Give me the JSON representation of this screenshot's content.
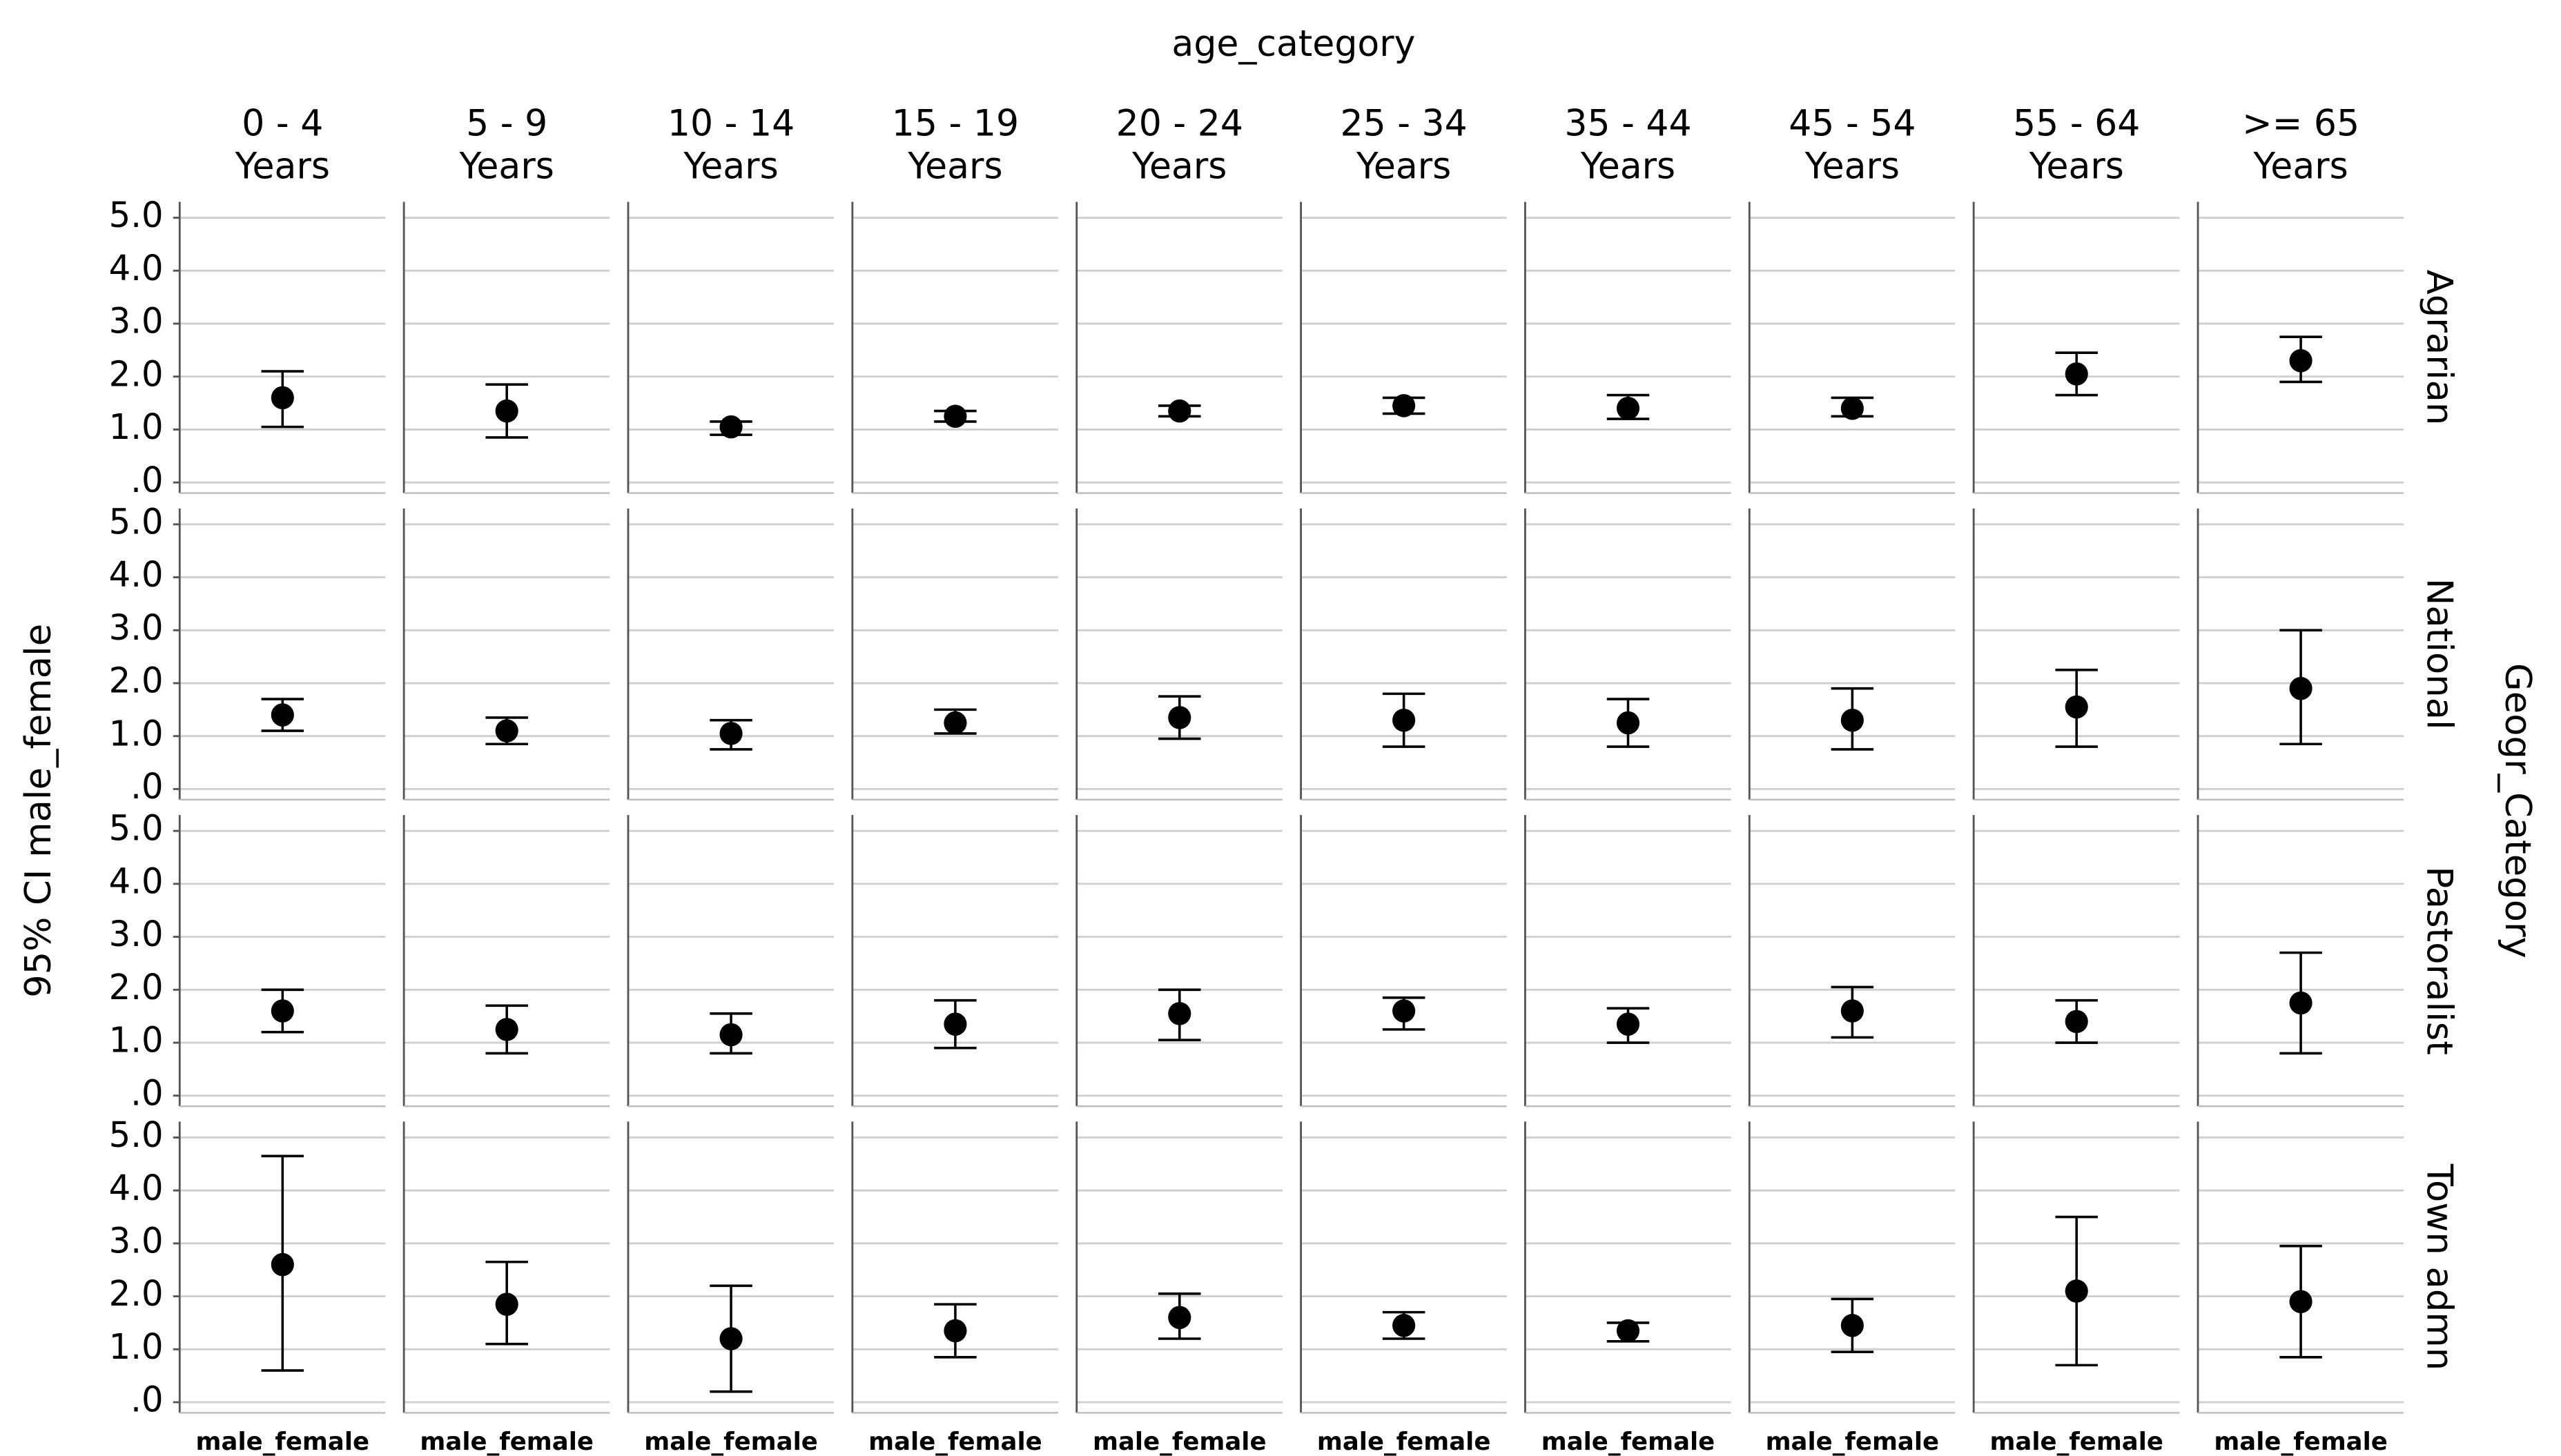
{
  "chart_data": {
    "type": "errorbar",
    "title": "age_category",
    "row_title": "Geogr_Category",
    "y_label": "95% CI male_female",
    "x_label": "male_female",
    "columns": [
      [
        "0 - 4",
        "Years"
      ],
      [
        "5 - 9",
        "Years"
      ],
      [
        "10 - 14",
        "Years"
      ],
      [
        "15 - 19",
        "Years"
      ],
      [
        "20 - 24",
        "Years"
      ],
      [
        "25 - 34",
        "Years"
      ],
      [
        "35 - 44",
        "Years"
      ],
      [
        "45 - 54",
        "Years"
      ],
      [
        "55 - 64",
        "Years"
      ],
      [
        ">= 65",
        "Years"
      ]
    ],
    "ylim": [
      -0.2,
      5.3
    ],
    "yticks": [
      {
        "value": 0,
        "label": ".0"
      },
      {
        "value": 1,
        "label": "1.0"
      },
      {
        "value": 2,
        "label": "2.0"
      },
      {
        "value": 3,
        "label": "3.0"
      },
      {
        "value": 4,
        "label": "4.0"
      },
      {
        "value": 5,
        "label": "5.0"
      }
    ],
    "grid": true,
    "color": "#000000",
    "series": [
      {
        "name": "Agrarian",
        "values": [
          1.6,
          1.35,
          1.05,
          1.25,
          1.35,
          1.45,
          1.4,
          1.4,
          2.05,
          2.3
        ],
        "lower": [
          1.05,
          0.85,
          0.9,
          1.15,
          1.25,
          1.3,
          1.2,
          1.25,
          1.65,
          1.9
        ],
        "upper": [
          2.1,
          1.85,
          1.15,
          1.35,
          1.45,
          1.6,
          1.65,
          1.6,
          2.45,
          2.75
        ]
      },
      {
        "name": "National",
        "values": [
          1.4,
          1.1,
          1.05,
          1.25,
          1.35,
          1.3,
          1.25,
          1.3,
          1.55,
          1.9
        ],
        "lower": [
          1.1,
          0.85,
          0.75,
          1.05,
          0.95,
          0.8,
          0.8,
          0.75,
          0.8,
          0.85
        ],
        "upper": [
          1.7,
          1.35,
          1.3,
          1.5,
          1.75,
          1.8,
          1.7,
          1.9,
          2.25,
          3.0
        ]
      },
      {
        "name": "Pastoralist",
        "values": [
          1.6,
          1.25,
          1.15,
          1.35,
          1.55,
          1.6,
          1.35,
          1.6,
          1.4,
          1.75
        ],
        "lower": [
          1.2,
          0.8,
          0.8,
          0.9,
          1.05,
          1.25,
          1.0,
          1.1,
          1.0,
          0.8
        ],
        "upper": [
          2.0,
          1.7,
          1.55,
          1.8,
          2.0,
          1.85,
          1.65,
          2.05,
          1.8,
          2.7
        ]
      },
      {
        "name": "Town admn",
        "values": [
          2.6,
          1.85,
          1.2,
          1.35,
          1.6,
          1.45,
          1.35,
          1.45,
          2.1,
          1.9
        ],
        "lower": [
          0.6,
          1.1,
          0.2,
          0.85,
          1.2,
          1.2,
          1.15,
          0.95,
          0.7,
          0.85
        ],
        "upper": [
          4.65,
          2.65,
          2.2,
          1.85,
          2.05,
          1.7,
          1.5,
          1.95,
          3.5,
          2.95
        ]
      }
    ]
  }
}
